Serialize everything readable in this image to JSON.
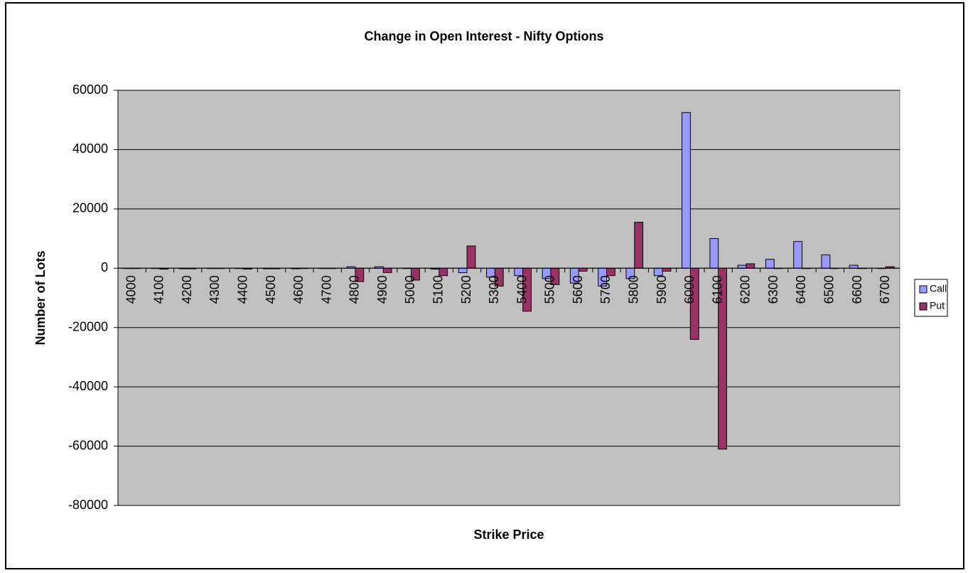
{
  "chart_data": {
    "type": "bar",
    "title": "Change in Open Interest - Nifty Options",
    "x_label": "Strike Price",
    "y_label": "Number of Lots",
    "categories": [
      4000,
      4100,
      4200,
      4300,
      4400,
      4500,
      4600,
      4700,
      4800,
      4900,
      5000,
      5100,
      5200,
      5300,
      5400,
      5500,
      5600,
      5700,
      5800,
      5900,
      6000,
      6100,
      6200,
      6300,
      6400,
      6500,
      6600,
      6700
    ],
    "series": [
      {
        "name": "Call",
        "color": "#9999ff",
        "values": [
          0,
          0,
          -200,
          0,
          0,
          -200,
          -200,
          0,
          500,
          500,
          0,
          -300,
          -1500,
          -3000,
          -2500,
          -3500,
          -5000,
          -6000,
          -3500,
          -2500,
          52500,
          10000,
          1000,
          3000,
          9000,
          4500,
          1000,
          0
        ]
      },
      {
        "name": "Put",
        "color": "#993366",
        "values": [
          0,
          -300,
          -200,
          0,
          -300,
          -200,
          0,
          0,
          -4500,
          -1500,
          -4000,
          -2500,
          7500,
          -6000,
          -14500,
          -5500,
          -1000,
          -2500,
          15500,
          -1000,
          -24000,
          -61000,
          1500,
          0,
          0,
          0,
          0,
          500
        ]
      }
    ],
    "ylim": [
      -80000,
      60000
    ],
    "yticks": [
      -80000,
      -60000,
      -40000,
      -20000,
      0,
      20000,
      40000,
      60000
    ],
    "grid": true,
    "legend": "right",
    "plot_background": "#c0c0c0"
  }
}
